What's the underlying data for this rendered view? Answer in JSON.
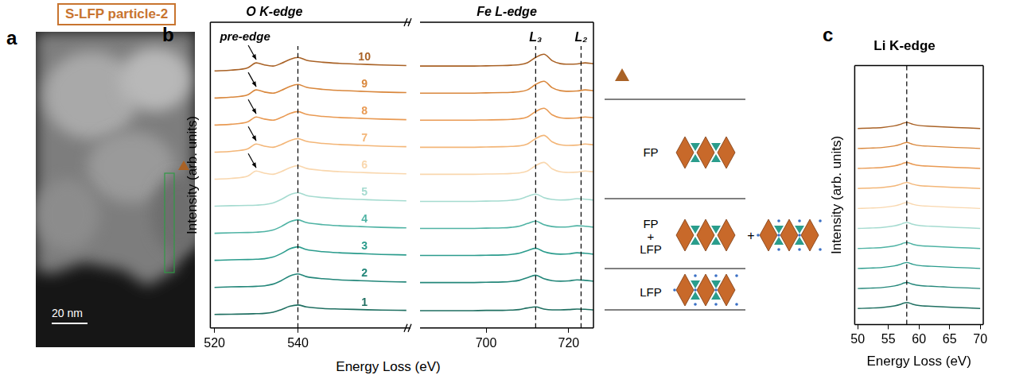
{
  "header": {
    "title": "S-LFP particle-2"
  },
  "image_panel": {
    "label": "a",
    "scale_bar": "20 nm"
  },
  "phase_key": {
    "phases": [
      "FP",
      "FP + LFP",
      "LFP"
    ]
  },
  "chart_data": [
    {
      "panel": "b",
      "type": "line",
      "y_label": "Intensity (arb. units)",
      "x_label": "Energy Loss (eV)",
      "tick_labels": "x",
      "grid": false,
      "ylim": [
        -0.5,
        10.8
      ],
      "series": [
        {
          "name": "1",
          "color": "#1f6f61"
        },
        {
          "name": "2",
          "color": "#24877a"
        },
        {
          "name": "3",
          "color": "#2b9c8d"
        },
        {
          "name": "4",
          "color": "#4fb3a4"
        },
        {
          "name": "5",
          "color": "#a5dbd0"
        },
        {
          "name": "6",
          "color": "#f9d7ae"
        },
        {
          "name": "7",
          "color": "#f3b678"
        },
        {
          "name": "8",
          "color": "#e99a53"
        },
        {
          "name": "9",
          "color": "#d9873c"
        },
        {
          "name": "10",
          "color": "#a96226"
        }
      ],
      "segments": [
        {
          "title": "O K-edge",
          "xlim": [
            519,
            567
          ],
          "xticks": [
            520,
            540
          ],
          "reference_lines": [
            {
              "x": 540
            }
          ],
          "pre_edge": {
            "text": "pre-edge",
            "x": 530,
            "series": [
              "6",
              "7",
              "8",
              "9",
              "10"
            ]
          },
          "x": [
            520,
            524,
            528,
            530,
            532,
            534,
            536,
            538,
            540,
            542,
            546,
            550,
            555,
            560,
            566
          ],
          "values": [
            [
              0,
              0.01,
              0.02,
              0.03,
              0.04,
              0.08,
              0.18,
              0.3,
              0.35,
              0.28,
              0.22,
              0.2,
              0.18,
              0.16,
              0.15
            ],
            [
              1,
              1.02,
              1.03,
              1.04,
              1.06,
              1.12,
              1.25,
              1.42,
              1.5,
              1.4,
              1.32,
              1.28,
              1.25,
              1.22,
              1.2
            ],
            [
              2,
              2.02,
              2.03,
              2.04,
              2.06,
              2.12,
              2.25,
              2.42,
              2.5,
              2.4,
              2.32,
              2.28,
              2.25,
              2.22,
              2.2
            ],
            [
              3,
              3.02,
              3.03,
              3.04,
              3.06,
              3.12,
              3.25,
              3.42,
              3.5,
              3.4,
              3.32,
              3.28,
              3.25,
              3.22,
              3.2
            ],
            [
              4,
              4.02,
              4.03,
              4.04,
              4.06,
              4.12,
              4.25,
              4.42,
              4.5,
              4.4,
              4.32,
              4.28,
              4.25,
              4.22,
              4.2
            ],
            [
              5,
              5.03,
              5.12,
              5.3,
              5.22,
              5.18,
              5.28,
              5.42,
              5.5,
              5.4,
              5.32,
              5.28,
              5.25,
              5.22,
              5.2
            ],
            [
              6,
              6.03,
              6.12,
              6.3,
              6.22,
              6.18,
              6.28,
              6.42,
              6.5,
              6.4,
              6.32,
              6.28,
              6.25,
              6.22,
              6.2
            ],
            [
              7,
              7.03,
              7.12,
              7.3,
              7.22,
              7.18,
              7.28,
              7.42,
              7.5,
              7.4,
              7.32,
              7.28,
              7.25,
              7.22,
              7.2
            ],
            [
              8,
              8.03,
              8.12,
              8.3,
              8.22,
              8.18,
              8.28,
              8.42,
              8.5,
              8.4,
              8.32,
              8.28,
              8.25,
              8.22,
              8.2
            ],
            [
              9,
              9.03,
              9.12,
              9.3,
              9.22,
              9.18,
              9.28,
              9.42,
              9.5,
              9.4,
              9.32,
              9.28,
              9.25,
              9.22,
              9.2
            ]
          ]
        },
        {
          "title": "Fe L-edge",
          "xlim": [
            684,
            726
          ],
          "xticks": [
            700,
            720
          ],
          "reference_lines": [
            {
              "x": 712,
              "label": "L₃"
            },
            {
              "x": 723,
              "label": "L₂"
            }
          ],
          "x": [
            684,
            690,
            696,
            700,
            704,
            706,
            708,
            710,
            712,
            714,
            716,
            718,
            720,
            722,
            724,
            726
          ],
          "values": [
            [
              0.14,
              0.14,
              0.14,
              0.15,
              0.15,
              0.16,
              0.18,
              0.24,
              0.28,
              0.2,
              0.17,
              0.17,
              0.18,
              0.2,
              0.19,
              0.17
            ],
            [
              1.18,
              1.18,
              1.18,
              1.19,
              1.2,
              1.22,
              1.26,
              1.36,
              1.45,
              1.32,
              1.25,
              1.23,
              1.24,
              1.28,
              1.26,
              1.23
            ],
            [
              2.18,
              2.18,
              2.18,
              2.19,
              2.2,
              2.22,
              2.26,
              2.36,
              2.45,
              2.32,
              2.25,
              2.23,
              2.24,
              2.28,
              2.26,
              2.23
            ],
            [
              3.18,
              3.18,
              3.18,
              3.19,
              3.2,
              3.22,
              3.26,
              3.36,
              3.45,
              3.32,
              3.25,
              3.23,
              3.24,
              3.28,
              3.26,
              3.23
            ],
            [
              4.18,
              4.18,
              4.18,
              4.19,
              4.2,
              4.22,
              4.26,
              4.36,
              4.45,
              4.32,
              4.25,
              4.23,
              4.24,
              4.28,
              4.26,
              4.23
            ],
            [
              5.18,
              5.18,
              5.18,
              5.19,
              5.2,
              5.21,
              5.23,
              5.3,
              5.5,
              5.62,
              5.38,
              5.27,
              5.25,
              5.26,
              5.3,
              5.27
            ],
            [
              6.18,
              6.18,
              6.18,
              6.19,
              6.2,
              6.21,
              6.23,
              6.3,
              6.5,
              6.62,
              6.38,
              6.27,
              6.25,
              6.26,
              6.3,
              6.27
            ],
            [
              7.18,
              7.18,
              7.18,
              7.19,
              7.2,
              7.21,
              7.23,
              7.3,
              7.5,
              7.62,
              7.38,
              7.27,
              7.25,
              7.26,
              7.3,
              7.27
            ],
            [
              8.18,
              8.18,
              8.18,
              8.19,
              8.2,
              8.21,
              8.23,
              8.3,
              8.5,
              8.62,
              8.38,
              8.27,
              8.25,
              8.26,
              8.3,
              8.27
            ],
            [
              9.18,
              9.18,
              9.18,
              9.19,
              9.2,
              9.21,
              9.23,
              9.3,
              9.5,
              9.62,
              9.38,
              9.27,
              9.25,
              9.26,
              9.3,
              9.27
            ]
          ]
        }
      ]
    },
    {
      "panel": "c",
      "type": "line",
      "title": "Li K-edge",
      "y_label": "Intensity (arb. units)",
      "x_label": "Energy Loss (eV)",
      "tick_labels": "x",
      "grid": false,
      "xlim": [
        49.5,
        70.5
      ],
      "xticks": [
        50,
        55,
        60,
        65,
        70
      ],
      "ylim": [
        -0.65,
        12.3
      ],
      "reference_lines": [
        {
          "x": 58
        }
      ],
      "x": [
        50,
        52,
        54,
        56,
        57,
        57.5,
        58,
        59,
        60,
        62,
        64,
        66,
        68,
        70
      ],
      "series": [
        {
          "color": "#1f6f61",
          "values": [
            0.15,
            0.17,
            0.2,
            0.28,
            0.36,
            0.42,
            0.45,
            0.36,
            0.3,
            0.26,
            0.23,
            0.2,
            0.18,
            0.15
          ]
        },
        {
          "color": "#24877a",
          "values": [
            1.15,
            1.17,
            1.2,
            1.28,
            1.36,
            1.42,
            1.45,
            1.36,
            1.3,
            1.26,
            1.23,
            1.2,
            1.18,
            1.15
          ]
        },
        {
          "color": "#2b9c8d",
          "values": [
            2.15,
            2.17,
            2.2,
            2.28,
            2.36,
            2.42,
            2.45,
            2.36,
            2.3,
            2.26,
            2.23,
            2.2,
            2.18,
            2.15
          ]
        },
        {
          "color": "#4fb3a4",
          "values": [
            3.15,
            3.17,
            3.2,
            3.28,
            3.36,
            3.42,
            3.45,
            3.36,
            3.3,
            3.26,
            3.23,
            3.2,
            3.18,
            3.15
          ]
        },
        {
          "color": "#a5dbd0",
          "values": [
            4.15,
            4.17,
            4.2,
            4.28,
            4.36,
            4.42,
            4.45,
            4.36,
            4.3,
            4.26,
            4.23,
            4.2,
            4.18,
            4.15
          ]
        },
        {
          "color": "#f9d7ae",
          "values": [
            5.15,
            5.17,
            5.2,
            5.28,
            5.36,
            5.42,
            5.45,
            5.36,
            5.3,
            5.26,
            5.23,
            5.2,
            5.18,
            5.15
          ]
        },
        {
          "color": "#f3b678",
          "values": [
            6.15,
            6.17,
            6.2,
            6.28,
            6.36,
            6.42,
            6.45,
            6.36,
            6.3,
            6.26,
            6.23,
            6.2,
            6.18,
            6.15
          ]
        },
        {
          "color": "#e99a53",
          "values": [
            7.15,
            7.17,
            7.2,
            7.28,
            7.36,
            7.42,
            7.45,
            7.36,
            7.3,
            7.26,
            7.23,
            7.2,
            7.18,
            7.15
          ]
        },
        {
          "color": "#d9873c",
          "values": [
            8.15,
            8.17,
            8.2,
            8.28,
            8.36,
            8.42,
            8.45,
            8.36,
            8.3,
            8.26,
            8.23,
            8.2,
            8.18,
            8.15
          ]
        },
        {
          "color": "#a96226",
          "values": [
            9.15,
            9.17,
            9.2,
            9.28,
            9.36,
            9.42,
            9.45,
            9.36,
            9.3,
            9.26,
            9.23,
            9.2,
            9.18,
            9.15
          ]
        }
      ]
    }
  ]
}
